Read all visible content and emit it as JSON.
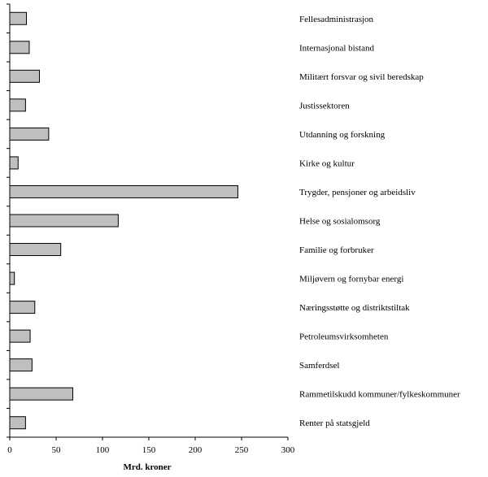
{
  "chart_data": {
    "type": "bar",
    "orientation": "horizontal",
    "categories": [
      "Fellesadministrasjon",
      "Internasjonal bistand",
      "Militært forsvar og sivil beredskap",
      "Justissektoren",
      "Utdanning og forskning",
      "Kirke og kultur",
      "Trygder, pensjoner og arbeidsliv",
      "Helse og sosialomsorg",
      "Familie og forbruker",
      "Miljøvern og fornybar energi",
      "Næringsstøtte og distriktstiltak",
      "Petroleumsvirksomheten",
      "Samferdsel",
      "Rammetilskudd kommuner/fylkeskommuner",
      "Renter på statsgjeld"
    ],
    "values": [
      18,
      21,
      32,
      17,
      42,
      9,
      246,
      117,
      55,
      5,
      27,
      22,
      24,
      68,
      17
    ],
    "xlabel": "Mrd. kroner",
    "xlim": [
      0,
      300
    ],
    "xticks": [
      "0",
      "50",
      "100",
      "150",
      "200",
      "250",
      "300"
    ],
    "grid": false,
    "legend": "none",
    "bar_color": "#bfbfbf"
  }
}
